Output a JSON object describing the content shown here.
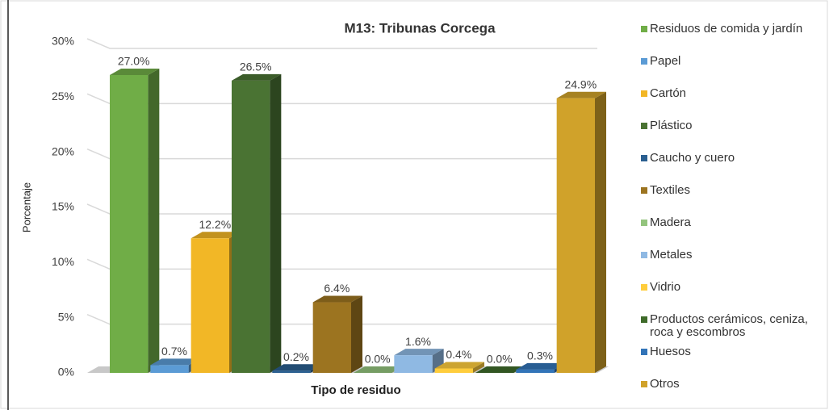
{
  "chart_data": {
    "type": "bar3d",
    "title": "M13: Tribunas Corcega",
    "x_label": "Tipo de residuo",
    "y_label": "Porcentaje",
    "ylim": [
      0,
      30
    ],
    "yticks": [
      {
        "value": 0,
        "label": "0%"
      },
      {
        "value": 5,
        "label": "5%"
      },
      {
        "value": 10,
        "label": "10%"
      },
      {
        "value": 15,
        "label": "15%"
      },
      {
        "value": 20,
        "label": "20%"
      },
      {
        "value": 25,
        "label": "25%"
      },
      {
        "value": 30,
        "label": "30%"
      }
    ],
    "grid": true,
    "legend": "right",
    "series": [
      {
        "name": "Residuos de comida y jardín",
        "color": "#70ad47",
        "values": [
          27.0
        ],
        "value_labels": [
          "27.0%"
        ]
      },
      {
        "name": "Papel",
        "color": "#5b9bd5",
        "values": [
          0.7
        ],
        "value_labels": [
          "0.7%"
        ]
      },
      {
        "name": "Cartón",
        "color": "#f2b726",
        "values": [
          12.2
        ],
        "value_labels": [
          "12.2%"
        ]
      },
      {
        "name": "Plástico",
        "color": "#4a7333",
        "values": [
          26.5
        ],
        "value_labels": [
          "26.5%"
        ]
      },
      {
        "name": "Caucho y cuero",
        "color": "#2a5f90",
        "values": [
          0.2
        ],
        "value_labels": [
          "0.2%"
        ]
      },
      {
        "name": "Textiles",
        "color": "#9c7420",
        "values": [
          6.4
        ],
        "value_labels": [
          "6.4%"
        ]
      },
      {
        "name": "Madera",
        "color": "#93c47d",
        "values": [
          0.0
        ],
        "value_labels": [
          "0.0%"
        ]
      },
      {
        "name": "Metales",
        "color": "#8fb9e3",
        "values": [
          1.6
        ],
        "value_labels": [
          "1.6%"
        ]
      },
      {
        "name": "Vidrio",
        "color": "#ffcd3c",
        "values": [
          0.4
        ],
        "value_labels": [
          "0.4%"
        ]
      },
      {
        "name": "Productos cerámicos, ceniza, roca y escombros",
        "color": "#3f6b2a",
        "values": [
          0.0
        ],
        "value_labels": [
          "0.0%"
        ]
      },
      {
        "name": "Huesos",
        "color": "#3274b8",
        "values": [
          0.3
        ],
        "value_labels": [
          "0.3%"
        ]
      },
      {
        "name": "Otros",
        "color": "#d0a22a",
        "values": [
          24.9
        ],
        "value_labels": [
          "24.9%"
        ]
      }
    ]
  }
}
